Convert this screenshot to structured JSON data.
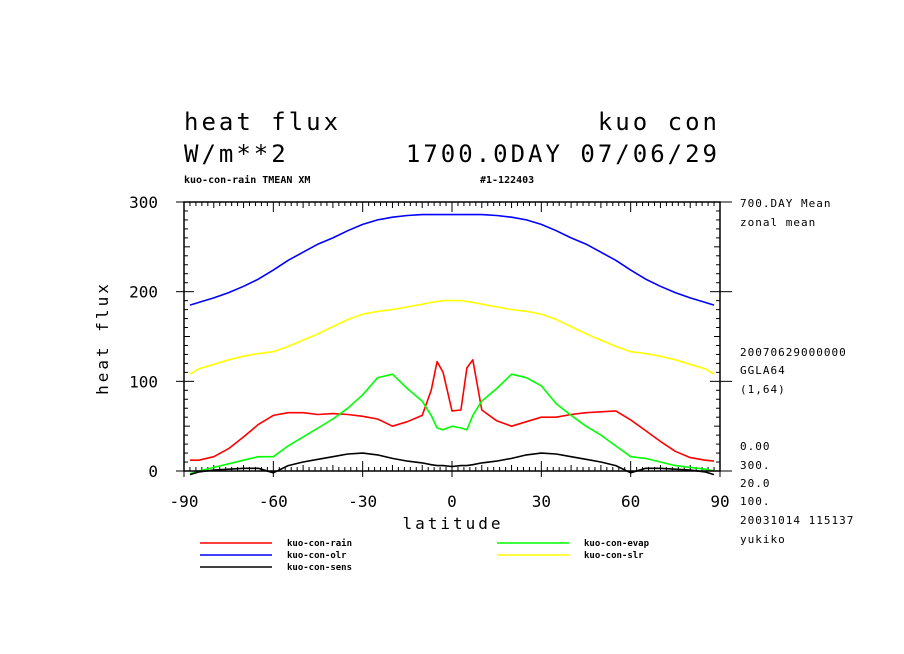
{
  "header": {
    "title_left": "heat flux",
    "title_right": "kuo con",
    "units": "W/m**2",
    "time_info": "1700.0DAY 07/06/29",
    "subtitle_left": "kuo-con-rain TMEAN XM",
    "subtitle_right": "#1-122403"
  },
  "side_info": {
    "mean_label": "700.DAY Mean",
    "mean_kind": "zonal mean",
    "datetime": "20070629000000",
    "model": "GGLA64",
    "index": "(1,64)",
    "params": [
      "0.00",
      "300.",
      "20.0",
      "100."
    ],
    "created": "20031014 115137",
    "author": "yukiko"
  },
  "chart_data": {
    "type": "line",
    "xlabel": "latitude",
    "ylabel": "heat flux",
    "xlim": [
      -90,
      90
    ],
    "ylim": [
      0,
      300
    ],
    "xticks": [
      -90,
      -60,
      -30,
      0,
      30,
      60,
      90
    ],
    "xtick_labels": [
      "-90",
      "-60",
      "-30",
      "0",
      "30",
      "60",
      "90"
    ],
    "yticks": [
      0,
      100,
      200,
      300
    ],
    "ytick_labels": [
      "0",
      "100",
      "200",
      "300"
    ],
    "grid": false,
    "legend_position": "bottom",
    "x": [
      -88,
      -85,
      -80,
      -75,
      -70,
      -65,
      -60,
      -55,
      -50,
      -45,
      -40,
      -35,
      -30,
      -25,
      -20,
      -15,
      -10,
      -7,
      -5,
      -3,
      0,
      3,
      5,
      7,
      10,
      15,
      20,
      25,
      30,
      35,
      40,
      45,
      50,
      55,
      60,
      65,
      70,
      75,
      80,
      85,
      88
    ],
    "series": [
      {
        "name": "kuo-con-rain",
        "color": "#ff0000",
        "values": [
          12,
          12,
          16,
          25,
          38,
          52,
          62,
          65,
          65,
          63,
          64,
          63,
          61,
          58,
          50,
          55,
          62,
          90,
          122,
          110,
          67,
          68,
          115,
          124,
          68,
          56,
          50,
          55,
          60,
          60,
          63,
          65,
          66,
          67,
          57,
          45,
          33,
          22,
          15,
          12,
          11
        ]
      },
      {
        "name": "kuo-con-evap",
        "color": "#00ff00",
        "values": [
          -3,
          0,
          4,
          8,
          12,
          16,
          16,
          28,
          38,
          48,
          58,
          70,
          85,
          104,
          108,
          92,
          78,
          62,
          48,
          46,
          50,
          48,
          46,
          62,
          78,
          92,
          108,
          104,
          95,
          75,
          62,
          50,
          40,
          28,
          16,
          14,
          10,
          6,
          4,
          2,
          0
        ]
      },
      {
        "name": "kuo-con-olr",
        "color": "#0000ff",
        "values": [
          185,
          188,
          193,
          199,
          206,
          214,
          224,
          235,
          244,
          253,
          260,
          268,
          275,
          280,
          283,
          285,
          286,
          286,
          286,
          286,
          286,
          286,
          286,
          286,
          286,
          285,
          283,
          280,
          275,
          268,
          260,
          253,
          244,
          235,
          224,
          214,
          206,
          199,
          193,
          188,
          185
        ]
      },
      {
        "name": "kuo-con-slr",
        "color": "#ffff00",
        "values": [
          108,
          114,
          119,
          124,
          128,
          131,
          133,
          139,
          146,
          153,
          161,
          169,
          175,
          178,
          180,
          183,
          186,
          188,
          189,
          190,
          190,
          190,
          189,
          188,
          186,
          183,
          180,
          178,
          175,
          169,
          161,
          153,
          146,
          139,
          133,
          131,
          128,
          124,
          119,
          114,
          108
        ]
      },
      {
        "name": "kuo-con-sens",
        "color": "#000000",
        "values": [
          -4,
          -1,
          1,
          2,
          3,
          3,
          -2,
          6,
          10,
          13,
          16,
          19,
          20,
          18,
          14,
          11,
          9,
          7,
          6,
          6,
          5,
          6,
          6,
          7,
          9,
          11,
          14,
          18,
          20,
          19,
          16,
          13,
          10,
          6,
          -2,
          3,
          3,
          2,
          1,
          -1,
          -4
        ]
      }
    ]
  }
}
